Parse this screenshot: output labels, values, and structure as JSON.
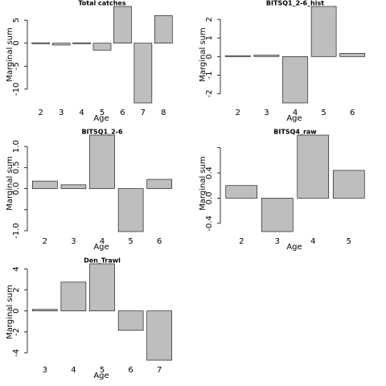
{
  "chart_data": [
    {
      "type": "bar",
      "title": "Total catches",
      "xlabel": "Age",
      "ylabel": "Marginal sum",
      "categories": [
        "2",
        "3",
        "4",
        "5",
        "6",
        "7",
        "8"
      ],
      "values": [
        0.1,
        -0.4,
        0.1,
        -1.5,
        8.0,
        -13.0,
        6.0
      ],
      "ylim": [
        -13,
        8
      ],
      "yticks": [
        {
          "value": -10,
          "label": "-10"
        },
        {
          "value": -5,
          "label": "-5"
        },
        {
          "value": 0,
          "label": "0"
        },
        {
          "value": 5,
          "label": "5"
        }
      ]
    },
    {
      "type": "bar",
      "title": "BITSQ1_2-6_hist",
      "xlabel": "Age",
      "ylabel": "Marginal sum",
      "categories": [
        "2",
        "3",
        "4",
        "5",
        "6"
      ],
      "values": [
        0.05,
        0.08,
        -2.5,
        2.7,
        0.17
      ],
      "ylim": [
        -2.5,
        2.7
      ],
      "yticks": [
        {
          "value": -2,
          "label": "-2"
        },
        {
          "value": -1,
          "label": "-1"
        },
        {
          "value": 0,
          "label": "0"
        },
        {
          "value": 1,
          "label": "1"
        },
        {
          "value": 2,
          "label": "2"
        }
      ]
    },
    {
      "type": "bar",
      "title": "BITSQ1_2-6",
      "xlabel": "Age",
      "ylabel": "Marginal sum",
      "categories": [
        "2",
        "3",
        "4",
        "5",
        "6"
      ],
      "values": [
        0.18,
        0.09,
        1.27,
        -1.02,
        0.22
      ],
      "ylim": [
        -1.02,
        1.27
      ],
      "yticks": [
        {
          "value": -1.0,
          "label": "-1.0"
        },
        {
          "value": -0.5,
          "label": ""
        },
        {
          "value": 0.0,
          "label": "0.0"
        },
        {
          "value": 0.5,
          "label": "0.5"
        },
        {
          "value": 1.0,
          "label": "1.0"
        }
      ]
    },
    {
      "type": "bar",
      "title": "BITSQ4_raw",
      "xlabel": "Age",
      "ylabel": "Marginal sum",
      "categories": [
        "2",
        "3",
        "4",
        "5"
      ],
      "values": [
        0.2,
        -0.53,
        1.0,
        0.44
      ],
      "ylim": [
        -0.53,
        1.0
      ],
      "yticks": [
        {
          "value": -0.4,
          "label": "-0.4"
        },
        {
          "value": 0.0,
          "label": "0.0"
        },
        {
          "value": 0.4,
          "label": "0.4"
        },
        {
          "value": 0.8,
          "label": ""
        }
      ]
    },
    {
      "type": "bar",
      "title": "Den_Trawl",
      "xlabel": "Age",
      "ylabel": "Marginal sum",
      "categories": [
        "3",
        "4",
        "5",
        "6",
        "7"
      ],
      "values": [
        0.15,
        2.75,
        4.5,
        -1.85,
        -4.7
      ],
      "ylim": [
        -4.7,
        4.5
      ],
      "yticks": [
        {
          "value": -4,
          "label": "-4"
        },
        {
          "value": -2,
          "label": "-2"
        },
        {
          "value": 0,
          "label": "0"
        },
        {
          "value": 2,
          "label": "2"
        },
        {
          "value": 4,
          "label": "4"
        }
      ]
    }
  ]
}
